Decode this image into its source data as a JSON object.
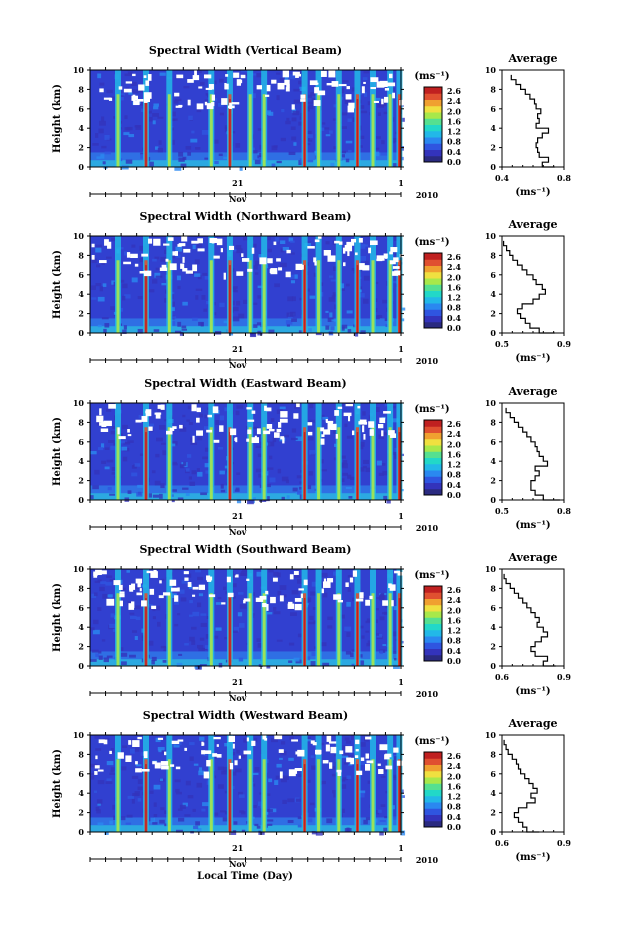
{
  "figure": {
    "xlabel": "Local Time (Day)",
    "colorbar_unit": "(ms⁻¹)",
    "avg_unit": "(ms⁻¹)",
    "avg_title": "Average",
    "ylabel": "Height (km)",
    "date_line": {
      "month": "Nov",
      "year": "2010",
      "tick_mid": "21",
      "tick_end": "1"
    }
  },
  "colors": {
    "scale": [
      "#2a2a80",
      "#3333bb",
      "#2f55e0",
      "#2a88f0",
      "#22b8e8",
      "#22d8c8",
      "#55e090",
      "#a8e84a",
      "#f0e040",
      "#f0a030",
      "#e05030",
      "#c02020"
    ]
  },
  "chart_data": [
    {
      "type": "heatmap",
      "title": "Spectral Width (Vertical Beam)",
      "ylabel": "Height (km)",
      "ylim": [
        0,
        10
      ],
      "yticks": [
        0,
        2,
        4,
        6,
        8,
        10
      ],
      "colorbar_ticks": [
        "2.6",
        "2.4",
        "2.0",
        "1.6",
        "1.2",
        "0.8",
        "0.4",
        "0.0"
      ],
      "average": {
        "title": "Average",
        "xlim": [
          0.4,
          0.8
        ],
        "xticks": [
          "0.4",
          "0.8"
        ],
        "ylim": [
          0,
          10
        ],
        "yticks": [
          0,
          2,
          4,
          6,
          8,
          10
        ],
        "height": [
          0,
          0.5,
          1,
          1.5,
          2,
          2.5,
          3,
          3.5,
          4,
          4.5,
          5,
          5.5,
          6,
          6.5,
          7,
          7.5,
          8,
          8.5,
          9,
          9.5
        ],
        "value": [
          0.74,
          0.66,
          0.7,
          0.64,
          0.63,
          0.62,
          0.63,
          0.66,
          0.7,
          0.62,
          0.64,
          0.63,
          0.65,
          0.62,
          0.61,
          0.58,
          0.55,
          0.52,
          0.49,
          0.46
        ]
      }
    },
    {
      "type": "heatmap",
      "title": "Spectral Width (Northward Beam)",
      "ylabel": "Height (km)",
      "ylim": [
        0,
        10
      ],
      "yticks": [
        0,
        2,
        4,
        6,
        8,
        10
      ],
      "colorbar_ticks": [
        "2.6",
        "2.4",
        "2.0",
        "1.6",
        "1.2",
        "0.8",
        "0.4",
        "0.0"
      ],
      "average": {
        "title": "Average",
        "xlim": [
          0.5,
          0.9
        ],
        "xticks": [
          "0.5",
          "0.9"
        ],
        "ylim": [
          0,
          10
        ],
        "yticks": [
          0,
          2,
          4,
          6,
          8,
          10
        ],
        "height": [
          0,
          0.5,
          1,
          1.5,
          2,
          2.5,
          3,
          3.5,
          4,
          4.5,
          5,
          5.5,
          6,
          6.5,
          7,
          7.5,
          8,
          8.5,
          9,
          9.5
        ],
        "value": [
          0.84,
          0.74,
          0.68,
          0.65,
          0.62,
          0.6,
          0.63,
          0.7,
          0.74,
          0.78,
          0.76,
          0.72,
          0.7,
          0.66,
          0.63,
          0.6,
          0.57,
          0.55,
          0.53,
          0.51
        ]
      }
    },
    {
      "type": "heatmap",
      "title": "Spectral Width (Eastward Beam)",
      "ylabel": "Height (km)",
      "ylim": [
        0,
        10
      ],
      "yticks": [
        0,
        2,
        4,
        6,
        8,
        10
      ],
      "colorbar_ticks": [
        "2.6",
        "2.4",
        "2.0",
        "1.6",
        "1.2",
        "0.8",
        "0.4",
        "0.0"
      ],
      "average": {
        "title": "Average",
        "xlim": [
          0.5,
          0.8
        ],
        "xticks": [
          "0.5",
          "0.8"
        ],
        "ylim": [
          0,
          10
        ],
        "yticks": [
          0,
          2,
          4,
          6,
          8,
          10
        ],
        "height": [
          0,
          0.5,
          1,
          1.5,
          2,
          2.5,
          3,
          3.5,
          4,
          4.5,
          5,
          5.5,
          6,
          6.5,
          7,
          7.5,
          8,
          8.5,
          9,
          9.5
        ],
        "value": [
          0.78,
          0.7,
          0.66,
          0.64,
          0.64,
          0.66,
          0.68,
          0.66,
          0.72,
          0.7,
          0.68,
          0.67,
          0.66,
          0.64,
          0.62,
          0.6,
          0.58,
          0.56,
          0.54,
          0.52
        ]
      }
    },
    {
      "type": "heatmap",
      "title": "Spectral Width (Southward Beam)",
      "ylabel": "Height (km)",
      "ylim": [
        0,
        10
      ],
      "yticks": [
        0,
        2,
        4,
        6,
        8,
        10
      ],
      "colorbar_ticks": [
        "2.6",
        "2.4",
        "2.0",
        "1.6",
        "1.2",
        "0.8",
        "0.4",
        "0.0"
      ],
      "average": {
        "title": "Average",
        "xlim": [
          0.6,
          0.9
        ],
        "xticks": [
          "0.6",
          "0.9"
        ],
        "ylim": [
          0,
          10
        ],
        "yticks": [
          0,
          2,
          4,
          6,
          8,
          10
        ],
        "height": [
          0,
          0.5,
          1,
          1.5,
          2,
          2.5,
          3,
          3.5,
          4,
          4.5,
          5,
          5.5,
          6,
          6.5,
          7,
          7.5,
          8,
          8.5,
          9,
          9.5
        ],
        "value": [
          0.86,
          0.8,
          0.82,
          0.76,
          0.74,
          0.76,
          0.79,
          0.82,
          0.8,
          0.77,
          0.78,
          0.76,
          0.74,
          0.72,
          0.7,
          0.68,
          0.66,
          0.64,
          0.62,
          0.61
        ]
      }
    },
    {
      "type": "heatmap",
      "title": "Spectral Width (Westward Beam)",
      "ylabel": "Height (km)",
      "ylim": [
        0,
        10
      ],
      "yticks": [
        0,
        2,
        4,
        6,
        8,
        10
      ],
      "colorbar_ticks": [
        "2.6",
        "2.4",
        "2.0",
        "1.6",
        "1.2",
        "0.8",
        "0.4",
        "0.0"
      ],
      "average": {
        "title": "Average",
        "xlim": [
          0.6,
          0.9
        ],
        "xticks": [
          "0.6",
          "0.9"
        ],
        "ylim": [
          0,
          10
        ],
        "yticks": [
          0,
          2,
          4,
          6,
          8,
          10
        ],
        "height": [
          0,
          0.5,
          1,
          1.5,
          2,
          2.5,
          3,
          3.5,
          4,
          4.5,
          5,
          5.5,
          6,
          6.5,
          7,
          7.5,
          8,
          8.5,
          9,
          9.5
        ],
        "value": [
          0.78,
          0.72,
          0.7,
          0.68,
          0.66,
          0.68,
          0.72,
          0.76,
          0.74,
          0.77,
          0.75,
          0.73,
          0.71,
          0.69,
          0.68,
          0.67,
          0.65,
          0.63,
          0.62,
          0.61
        ]
      }
    }
  ]
}
